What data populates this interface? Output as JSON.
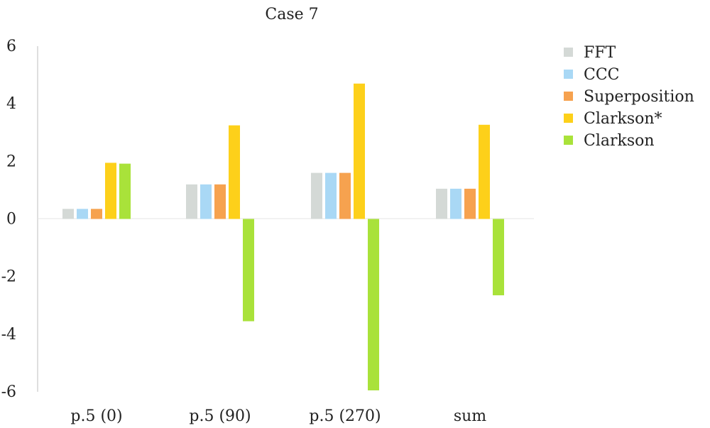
{
  "chart_data": {
    "type": "bar",
    "title": "Case 7",
    "categories": [
      "p.5 (0)",
      "p.5 (90)",
      "p.5 (270)",
      "sum"
    ],
    "ylim": [
      -6,
      6
    ],
    "yticks": [
      6,
      4,
      2,
      0,
      -2,
      -4,
      -6
    ],
    "grid": false,
    "legend": "right",
    "series": [
      {
        "name": "FFT",
        "color": "#d4d9d6",
        "values": [
          0.35,
          1.2,
          1.6,
          1.05
        ]
      },
      {
        "name": "CCC",
        "color": "#a9d8f5",
        "values": [
          0.35,
          1.2,
          1.6,
          1.05
        ]
      },
      {
        "name": "Superposition",
        "color": "#f6a24f",
        "values": [
          0.35,
          1.2,
          1.6,
          1.05
        ]
      },
      {
        "name": "Clarkson*",
        "color": "#fdd01a",
        "values": [
          1.95,
          3.25,
          4.7,
          3.27
        ]
      },
      {
        "name": "Clarkson",
        "color": "#a9e23a",
        "values": [
          1.92,
          -3.55,
          -5.95,
          -2.65
        ]
      }
    ]
  }
}
